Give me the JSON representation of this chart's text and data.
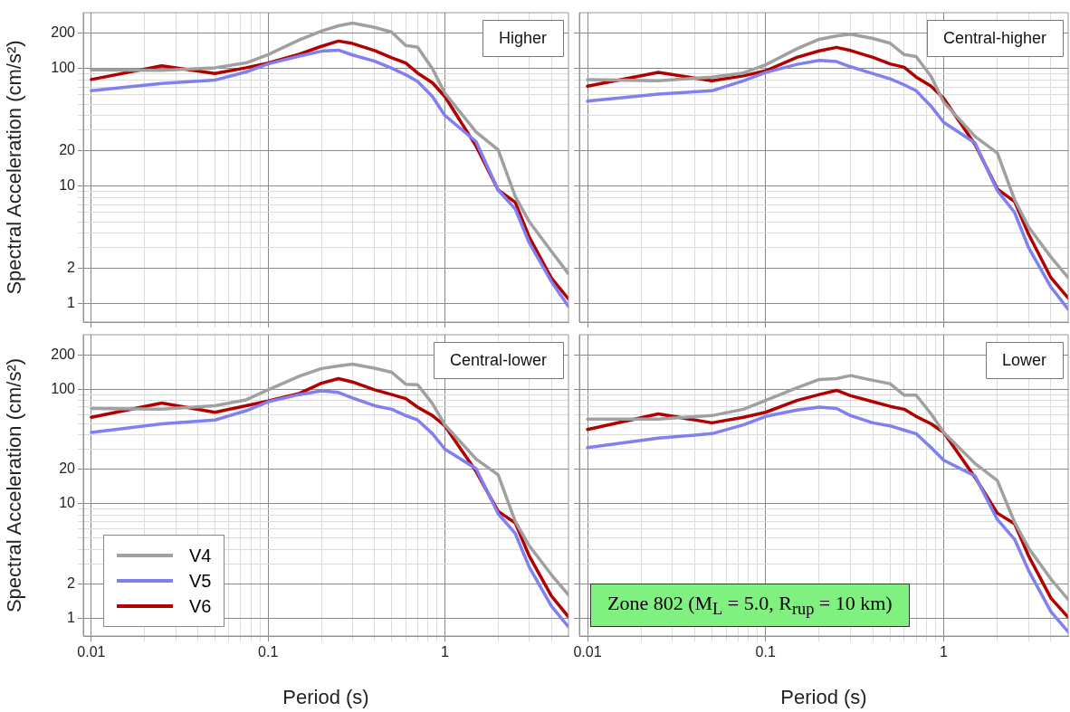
{
  "chart_data": [
    {
      "type": "line",
      "title": "Higher",
      "ylabel": "Spectral Acceleration (cm/s²)",
      "log": "xy",
      "grid": true,
      "marker": "none",
      "line_style": "solid",
      "tick_labels": "y",
      "x": [
        0.01,
        0.025,
        0.05,
        0.075,
        0.1,
        0.15,
        0.2,
        0.25,
        0.3,
        0.4,
        0.5,
        0.6,
        0.7,
        0.85,
        1,
        1.5,
        2,
        2.5,
        3,
        4,
        5
      ],
      "xlim": [
        0.009,
        5
      ],
      "ylim": [
        0.7,
        300
      ],
      "xticks": [
        0.01,
        {
          "value": 0.02,
          "label": null
        },
        {
          "value": 0.03,
          "label": null
        },
        {
          "value": 0.04,
          "label": null
        },
        {
          "value": 0.05,
          "label": null
        },
        {
          "value": 0.06,
          "label": null
        },
        {
          "value": 0.07,
          "label": null
        },
        {
          "value": 0.08,
          "label": null
        },
        {
          "value": 0.09,
          "label": null
        },
        0.1,
        {
          "value": 0.2,
          "label": null
        },
        {
          "value": 0.3,
          "label": null
        },
        {
          "value": 0.4,
          "label": null
        },
        {
          "value": 0.5,
          "label": null
        },
        {
          "value": 0.6,
          "label": null
        },
        {
          "value": 0.7,
          "label": null
        },
        {
          "value": 0.8,
          "label": null
        },
        {
          "value": 0.9,
          "label": null
        },
        1,
        {
          "value": 2,
          "label": null
        },
        {
          "value": 3,
          "label": null
        },
        {
          "value": 4,
          "label": null
        }
      ],
      "yticks": [
        1,
        2,
        {
          "value": 3,
          "label": null
        },
        {
          "value": 4,
          "label": null
        },
        {
          "value": 5,
          "label": null
        },
        {
          "value": 6,
          "label": null
        },
        {
          "value": 7,
          "label": null
        },
        {
          "value": 8,
          "label": null
        },
        {
          "value": 9,
          "label": null
        },
        10,
        20,
        {
          "value": 30,
          "label": null
        },
        {
          "value": 40,
          "label": null
        },
        {
          "value": 50,
          "label": null
        },
        {
          "value": 60,
          "label": null
        },
        {
          "value": 70,
          "label": null
        },
        {
          "value": 80,
          "label": null
        },
        {
          "value": 90,
          "label": null
        },
        100,
        200
      ],
      "series": [
        {
          "color": "#a0a0a0",
          "values": [
            98,
            97,
            102,
            112,
            132,
            176,
            209,
            232,
            245,
            225,
            205,
            158,
            153,
            100,
            62,
            29,
            20.4,
            8.2,
            5,
            2.8,
            1.8
          ]
        },
        {
          "color": "#8080f0",
          "values": [
            65,
            75,
            80,
            94,
            110,
            128,
            141,
            144,
            131,
            116,
            101,
            89,
            78,
            58,
            40,
            24,
            9.3,
            6.4,
            3.3,
            1.55,
            0.95
          ]
        },
        {
          "color": "#b00000",
          "values": [
            81,
            106,
            91,
            102,
            112,
            133,
            155,
            172,
            164,
            143,
            124,
            112,
            92,
            76,
            58,
            22,
            9.3,
            7.3,
            3.7,
            1.66,
            1.1
          ]
        }
      ]
    },
    {
      "type": "line",
      "title": "Central-higher",
      "log": "xy",
      "grid": true,
      "marker": "none",
      "line_style": "solid",
      "tick_labels": false,
      "x": [
        0.01,
        0.025,
        0.05,
        0.075,
        0.1,
        0.15,
        0.2,
        0.25,
        0.3,
        0.4,
        0.5,
        0.6,
        0.7,
        0.85,
        1,
        1.5,
        2,
        2.5,
        3,
        4,
        5
      ],
      "xlim": [
        0.009,
        5
      ],
      "ylim": [
        0.7,
        300
      ],
      "xticks": [
        0.01,
        {
          "value": 0.02,
          "label": null
        },
        {
          "value": 0.03,
          "label": null
        },
        {
          "value": 0.04,
          "label": null
        },
        {
          "value": 0.05,
          "label": null
        },
        {
          "value": 0.06,
          "label": null
        },
        {
          "value": 0.07,
          "label": null
        },
        {
          "value": 0.08,
          "label": null
        },
        {
          "value": 0.09,
          "label": null
        },
        0.1,
        {
          "value": 0.2,
          "label": null
        },
        {
          "value": 0.3,
          "label": null
        },
        {
          "value": 0.4,
          "label": null
        },
        {
          "value": 0.5,
          "label": null
        },
        {
          "value": 0.6,
          "label": null
        },
        {
          "value": 0.7,
          "label": null
        },
        {
          "value": 0.8,
          "label": null
        },
        {
          "value": 0.9,
          "label": null
        },
        1,
        {
          "value": 2,
          "label": null
        },
        {
          "value": 3,
          "label": null
        },
        {
          "value": 4,
          "label": null
        }
      ],
      "yticks": [
        1,
        2,
        {
          "value": 3,
          "label": null
        },
        {
          "value": 4,
          "label": null
        },
        {
          "value": 5,
          "label": null
        },
        {
          "value": 6,
          "label": null
        },
        {
          "value": 7,
          "label": null
        },
        {
          "value": 8,
          "label": null
        },
        {
          "value": 9,
          "label": null
        },
        10,
        20,
        {
          "value": 30,
          "label": null
        },
        {
          "value": 40,
          "label": null
        },
        {
          "value": 50,
          "label": null
        },
        {
          "value": 60,
          "label": null
        },
        {
          "value": 70,
          "label": null
        },
        {
          "value": 80,
          "label": null
        },
        {
          "value": 90,
          "label": null
        },
        100,
        200
      ],
      "series": [
        {
          "color": "#a0a0a0",
          "values": [
            81,
            79,
            85,
            92,
            108,
            148,
            178,
            190,
            197,
            181,
            165,
            132,
            127,
            86,
            52,
            26.5,
            19.2,
            7.7,
            4.5,
            2.5,
            1.67
          ]
        },
        {
          "color": "#8080f0",
          "values": [
            53,
            61,
            65,
            79,
            93,
            109,
            118,
            115,
            104,
            91,
            82,
            73,
            65,
            48,
            35,
            23.4,
            9.2,
            6,
            3,
            1.39,
            0.9
          ]
        },
        {
          "color": "#b00000",
          "values": [
            71,
            93,
            79,
            87,
            96,
            125,
            142,
            152,
            143,
            125,
            110,
            103,
            85,
            71,
            56,
            22.7,
            9.5,
            7.4,
            3.9,
            1.67,
            1.12
          ]
        }
      ]
    },
    {
      "type": "line",
      "title": "Central-lower",
      "xlabel": "Period (s)",
      "ylabel": "Spectral Acceleration (cm/s²)",
      "log": "xy",
      "grid": true,
      "marker": "none",
      "line_style": "solid",
      "legend": "bottom left",
      "x": [
        0.01,
        0.025,
        0.05,
        0.075,
        0.1,
        0.15,
        0.2,
        0.25,
        0.3,
        0.4,
        0.5,
        0.6,
        0.7,
        0.85,
        1,
        1.5,
        2,
        2.5,
        3,
        4,
        5
      ],
      "xlim": [
        0.009,
        5
      ],
      "ylim": [
        0.7,
        300
      ],
      "xticks": [
        0.01,
        {
          "value": 0.02,
          "label": null
        },
        {
          "value": 0.03,
          "label": null
        },
        {
          "value": 0.04,
          "label": null
        },
        {
          "value": 0.05,
          "label": null
        },
        {
          "value": 0.06,
          "label": null
        },
        {
          "value": 0.07,
          "label": null
        },
        {
          "value": 0.08,
          "label": null
        },
        {
          "value": 0.09,
          "label": null
        },
        0.1,
        {
          "value": 0.2,
          "label": null
        },
        {
          "value": 0.3,
          "label": null
        },
        {
          "value": 0.4,
          "label": null
        },
        {
          "value": 0.5,
          "label": null
        },
        {
          "value": 0.6,
          "label": null
        },
        {
          "value": 0.7,
          "label": null
        },
        {
          "value": 0.8,
          "label": null
        },
        {
          "value": 0.9,
          "label": null
        },
        1,
        {
          "value": 2,
          "label": null
        },
        {
          "value": 3,
          "label": null
        },
        {
          "value": 4,
          "label": null
        }
      ],
      "yticks": [
        1,
        2,
        {
          "value": 3,
          "label": null
        },
        {
          "value": 4,
          "label": null
        },
        {
          "value": 5,
          "label": null
        },
        {
          "value": 6,
          "label": null
        },
        {
          "value": 7,
          "label": null
        },
        {
          "value": 8,
          "label": null
        },
        {
          "value": 9,
          "label": null
        },
        10,
        20,
        {
          "value": 30,
          "label": null
        },
        {
          "value": 40,
          "label": null
        },
        {
          "value": 50,
          "label": null
        },
        {
          "value": 60,
          "label": null
        },
        {
          "value": 70,
          "label": null
        },
        {
          "value": 80,
          "label": null
        },
        {
          "value": 90,
          "label": null
        },
        100,
        200
      ],
      "series": [
        {
          "name": "V4",
          "color": "#a0a0a0",
          "values": [
            68,
            67,
            72,
            81,
            99,
            130,
            152,
            160,
            166,
            153,
            141,
            111,
            110,
            75,
            49,
            24.6,
            17.9,
            7,
            4.3,
            2.4,
            1.6
          ]
        },
        {
          "name": "V5",
          "color": "#8080f0",
          "values": [
            42,
            50,
            54,
            65,
            78,
            90,
            97,
            94,
            84,
            72,
            67,
            59,
            54,
            41,
            30,
            20.3,
            8.2,
            5.5,
            2.8,
            1.28,
            0.84
          ]
        },
        {
          "name": "V6",
          "color": "#b00000",
          "values": [
            57,
            76,
            63,
            72,
            79,
            92,
            113,
            124,
            116,
            99,
            90,
            83,
            70,
            59,
            48,
            19.2,
            8.6,
            6.8,
            3.5,
            1.57,
            1.03
          ]
        }
      ]
    },
    {
      "type": "line",
      "title": "Lower",
      "xlabel": "Period (s)",
      "log": "xy",
      "grid": true,
      "marker": "none",
      "line_style": "solid",
      "tick_labels": "x",
      "annotations": [
        "Zone 802 (M$_{L}$ = 5.0, R$_{rup}$ = 10 km)"
      ],
      "x": [
        0.01,
        0.025,
        0.05,
        0.075,
        0.1,
        0.15,
        0.2,
        0.25,
        0.3,
        0.4,
        0.5,
        0.6,
        0.7,
        0.85,
        1,
        1.5,
        2,
        2.5,
        3,
        4,
        5
      ],
      "xlim": [
        0.009,
        5
      ],
      "ylim": [
        0.7,
        300
      ],
      "xticks": [
        0.01,
        {
          "value": 0.02,
          "label": null
        },
        {
          "value": 0.03,
          "label": null
        },
        {
          "value": 0.04,
          "label": null
        },
        {
          "value": 0.05,
          "label": null
        },
        {
          "value": 0.06,
          "label": null
        },
        {
          "value": 0.07,
          "label": null
        },
        {
          "value": 0.08,
          "label": null
        },
        {
          "value": 0.09,
          "label": null
        },
        0.1,
        {
          "value": 0.2,
          "label": null
        },
        {
          "value": 0.3,
          "label": null
        },
        {
          "value": 0.4,
          "label": null
        },
        {
          "value": 0.5,
          "label": null
        },
        {
          "value": 0.6,
          "label": null
        },
        {
          "value": 0.7,
          "label": null
        },
        {
          "value": 0.8,
          "label": null
        },
        {
          "value": 0.9,
          "label": null
        },
        1,
        {
          "value": 2,
          "label": null
        },
        {
          "value": 3,
          "label": null
        },
        {
          "value": 4,
          "label": null
        }
      ],
      "yticks": [
        1,
        2,
        {
          "value": 3,
          "label": null
        },
        {
          "value": 4,
          "label": null
        },
        {
          "value": 5,
          "label": null
        },
        {
          "value": 6,
          "label": null
        },
        {
          "value": 7,
          "label": null
        },
        {
          "value": 8,
          "label": null
        },
        {
          "value": 9,
          "label": null
        },
        10,
        20,
        {
          "value": 30,
          "label": null
        },
        {
          "value": 40,
          "label": null
        },
        {
          "value": 50,
          "label": null
        },
        {
          "value": 60,
          "label": null
        },
        {
          "value": 70,
          "label": null
        },
        {
          "value": 80,
          "label": null
        },
        {
          "value": 90,
          "label": null
        },
        100,
        200
      ],
      "series": [
        {
          "color": "#a0a0a0",
          "values": [
            55,
            55,
            59,
            67,
            80,
            103,
            122,
            124,
            132,
            120,
            112,
            89,
            89,
            61,
            42,
            22.5,
            16,
            6.9,
            4.1,
            2.2,
            1.46
          ]
        },
        {
          "color": "#8080f0",
          "values": [
            31,
            37.5,
            41,
            49,
            58,
            66,
            70,
            68,
            59,
            51,
            48,
            44,
            41,
            31,
            24,
            17.5,
            7.3,
            4.9,
            2.6,
            1.14,
            0.76
          ]
        },
        {
          "color": "#b00000",
          "values": [
            44.6,
            61,
            51,
            57,
            63,
            80,
            90,
            98,
            88,
            78,
            71,
            67,
            58,
            50,
            42,
            17,
            8.3,
            6.7,
            3.5,
            1.5,
            1.02
          ]
        }
      ]
    }
  ]
}
